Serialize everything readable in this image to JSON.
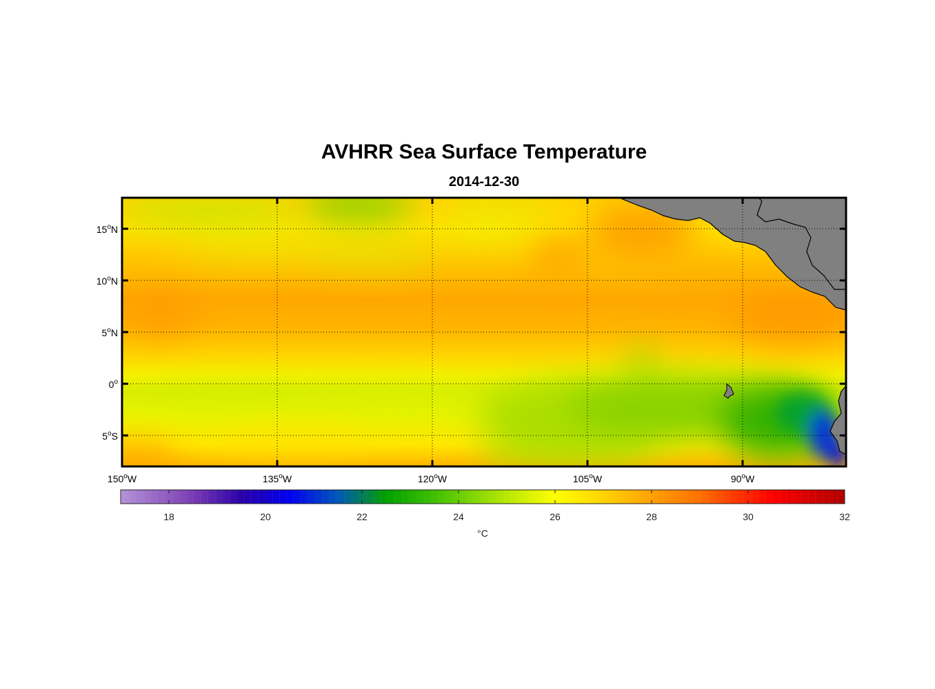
{
  "figure": {
    "title": "AVHRR Sea Surface Temperature",
    "date": "2014-12-30"
  },
  "map": {
    "lon_range": [
      -150,
      -80
    ],
    "lat_range": [
      -8,
      18
    ],
    "lon_ticks": [
      {
        "value": -150,
        "num": "150",
        "hem": "W"
      },
      {
        "value": -135,
        "num": "135",
        "hem": "W"
      },
      {
        "value": -120,
        "num": "120",
        "hem": "W"
      },
      {
        "value": -105,
        "num": "105",
        "hem": "W"
      },
      {
        "value": -90,
        "num": "90",
        "hem": "W"
      }
    ],
    "lat_ticks": [
      {
        "value": 15,
        "num": "15",
        "hem": "N"
      },
      {
        "value": 10,
        "num": "10",
        "hem": "N"
      },
      {
        "value": 5,
        "num": "5",
        "hem": "N"
      },
      {
        "value": 0,
        "num": "0",
        "hem": ""
      },
      {
        "value": -5,
        "num": "5",
        "hem": "S"
      }
    ],
    "degree_symbol": "o",
    "grid": true,
    "land_color": "#808080"
  },
  "colorbar": {
    "min": 17,
    "max": 32,
    "ticks": [
      18,
      20,
      22,
      24,
      26,
      28,
      30,
      32
    ],
    "unit": "°C",
    "colors": {
      "17": "#b494d8",
      "18.5": "#7a3cb4",
      "19.5": "#2a00a8",
      "20.5": "#0000f0",
      "21.5": "#0058b8",
      "22.5": "#00a000",
      "23.5": "#40c000",
      "25": "#b8e800",
      "26": "#ffff00",
      "27": "#ffd400",
      "28": "#ffa000",
      "29": "#ff7000",
      "30.5": "#ff0000",
      "32": "#b00000"
    }
  }
}
